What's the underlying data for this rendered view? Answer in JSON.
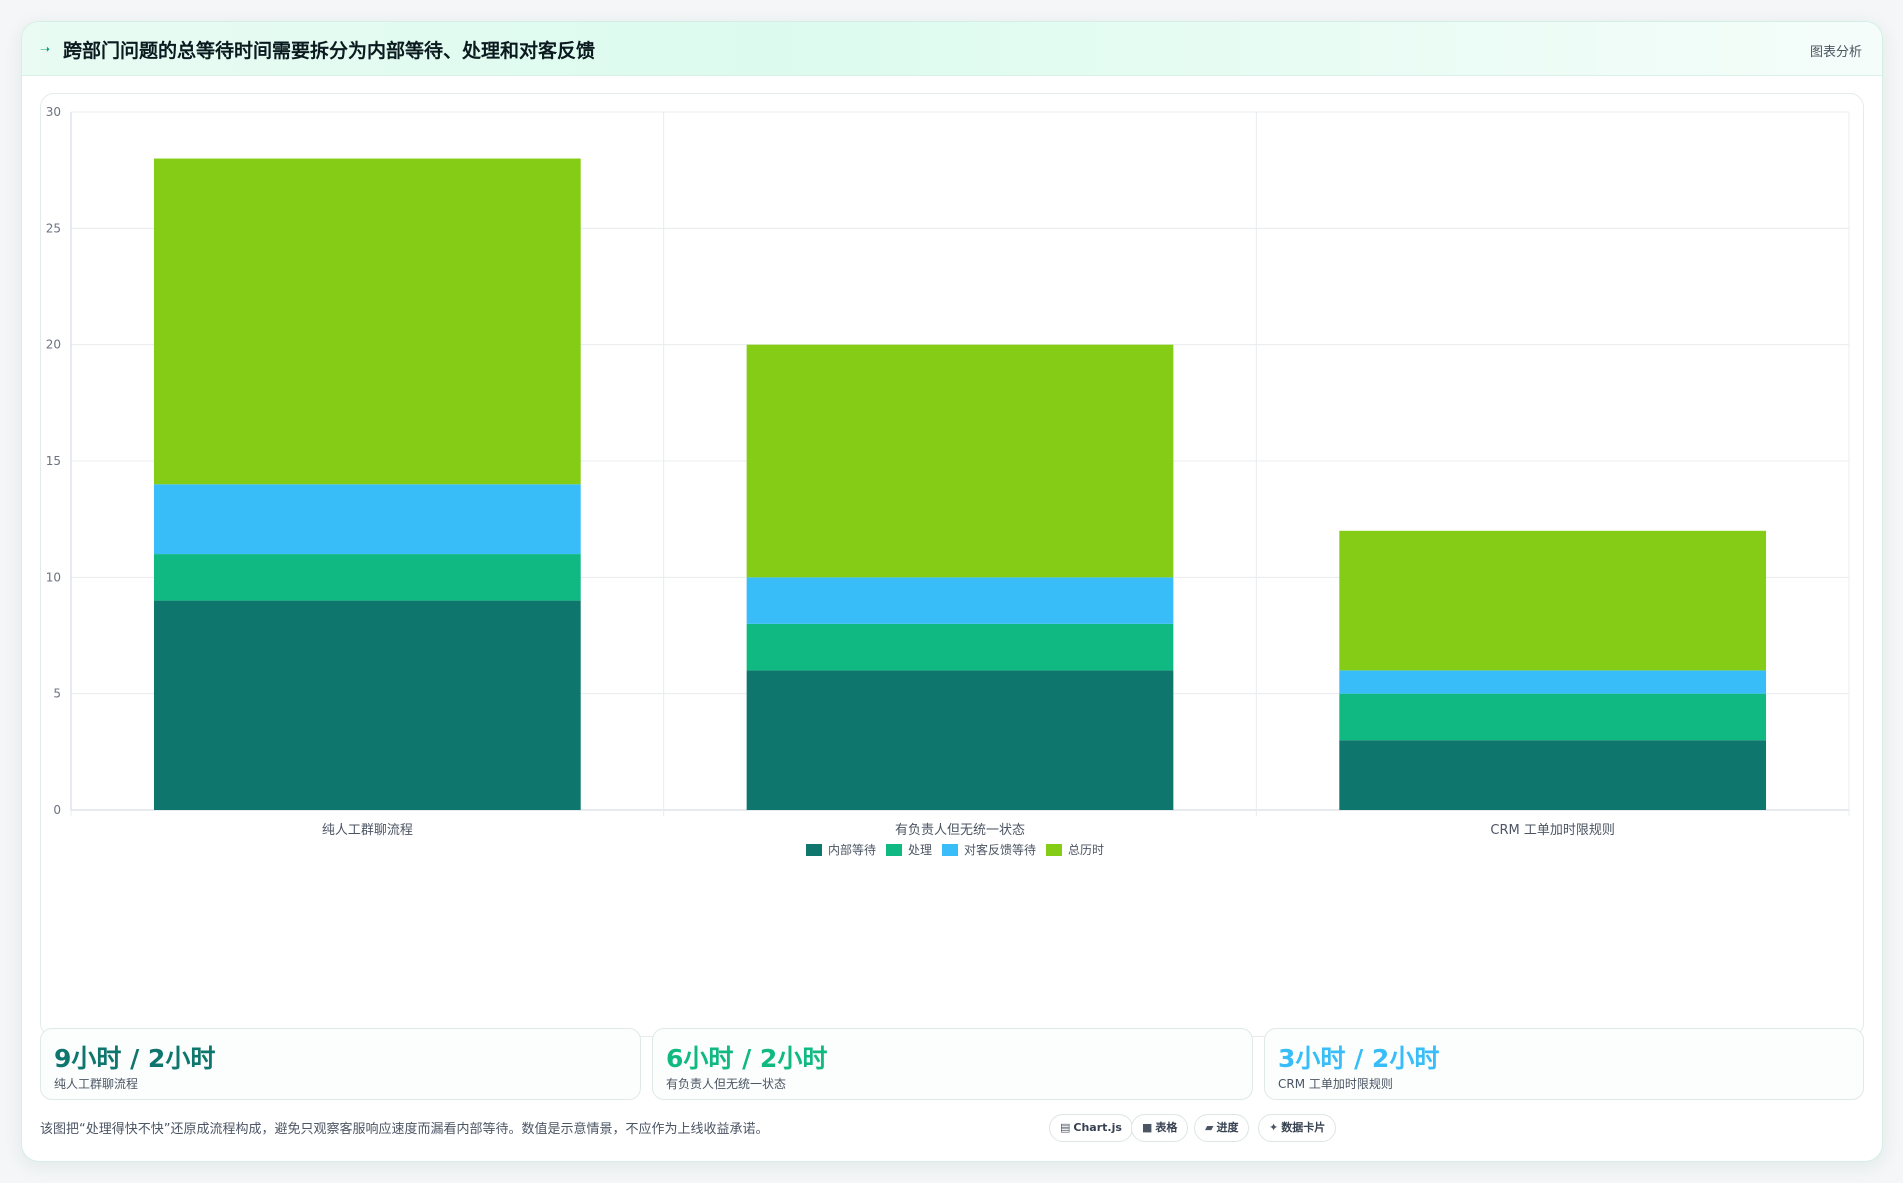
{
  "header": {
    "title": "跨部门问题的总等待时间需要拆分为内部等待、处理和对客反馈",
    "tag": "图表分析"
  },
  "chart_data": {
    "type": "bar",
    "stacked": true,
    "categories": [
      "纯人工群聊流程",
      "有负责人但无统一状态",
      "CRM 工单加时限规则"
    ],
    "series": [
      {
        "name": "内部等待",
        "color": "#0f766e",
        "values": [
          9,
          6,
          3
        ]
      },
      {
        "name": "处理",
        "color": "#10b981",
        "values": [
          2,
          2,
          2
        ]
      },
      {
        "name": "对客反馈等待",
        "color": "#38bdf8",
        "values": [
          3,
          2,
          1
        ]
      },
      {
        "name": "总历时",
        "color": "#84cc16",
        "values": [
          14,
          10,
          6
        ]
      }
    ],
    "ylim": [
      0,
      30
    ],
    "yticks": [
      0,
      5,
      10,
      15,
      20,
      25,
      30
    ],
    "grid": true,
    "legend": "bottom"
  },
  "stats": [
    {
      "value": "9小时 / 2小时",
      "label": "纯人工群聊流程",
      "color": "#0f766e"
    },
    {
      "value": "6小时 / 2小时",
      "label": "有负责人但无统一状态",
      "color": "#10b981"
    },
    {
      "value": "3小时 / 2小时",
      "label": "CRM 工单加时限规则",
      "color": "#38bdf8"
    }
  ],
  "footnote": "该图把“处理得快不快”还原成流程构成，避免只观察客服响应速度而漏看内部等待。数值是示意情景，不应作为上线收益承诺。",
  "chips": [
    {
      "icon": "chart-icon",
      "glyph": "▤",
      "label": "Chart.js"
    },
    {
      "icon": "table-icon",
      "glyph": "■",
      "label": "表格"
    },
    {
      "icon": "progress-icon",
      "glyph": "▰",
      "label": "进度"
    },
    {
      "icon": "data-card-icon",
      "glyph": "✦",
      "label": "数据卡片"
    }
  ]
}
